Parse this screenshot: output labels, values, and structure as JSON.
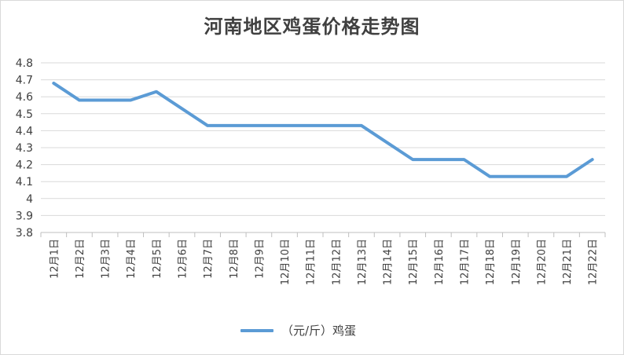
{
  "chart_data": {
    "type": "line",
    "title": "河南地区鸡蛋价格走势图",
    "categories": [
      "12月1日",
      "12月2日",
      "12月3日",
      "12月4日",
      "12月5日",
      "12月6日",
      "12月7日",
      "12月8日",
      "12月9日",
      "12月10日",
      "12月11日",
      "12月12日",
      "12月13日",
      "12月14日",
      "12月15日",
      "12月16日",
      "12月17日",
      "12月18日",
      "12月19日",
      "12月20日",
      "12月21日",
      "12月22日"
    ],
    "series": [
      {
        "name": "（元/斤）鸡蛋",
        "color": "#5b9bd5",
        "values": [
          4.68,
          4.58,
          4.58,
          4.58,
          4.63,
          4.53,
          4.43,
          4.43,
          4.43,
          4.43,
          4.43,
          4.43,
          4.43,
          4.33,
          4.23,
          4.23,
          4.23,
          4.13,
          4.13,
          4.13,
          4.13,
          4.23
        ]
      }
    ],
    "y_ticks": [
      "3.8",
      "3.9",
      "4",
      "4.1",
      "4.2",
      "4.3",
      "4.4",
      "4.5",
      "4.6",
      "4.7",
      "4.8"
    ],
    "ylim": [
      3.8,
      4.8
    ],
    "grid": true,
    "legend": "bottom"
  }
}
